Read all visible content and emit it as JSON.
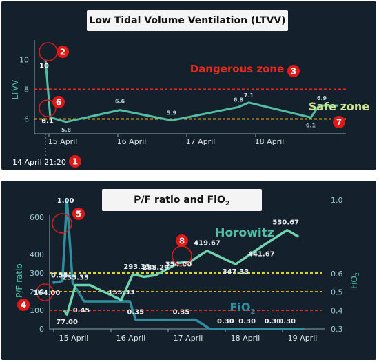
{
  "panels": [
    {
      "title": "Low Tidal Volume Ventilation (LTVV)",
      "ylabel": "LTVV",
      "start_label": "14 April 21:20",
      "zones": {
        "dangerous": "Dangerous zone",
        "safe": "Safe zone"
      },
      "markers": [
        "1",
        "2",
        "3",
        "6",
        "7"
      ]
    },
    {
      "title": "P/F ratio and FiO",
      "title_sub": "2",
      "ylabel_left": "P/F ratio",
      "ylabel_right": "FiO",
      "ylabel_right_sub": "2",
      "series_label_1": "Horowitz",
      "series_label_2": "FiO",
      "series_label_2_sub": "2",
      "markers": [
        "4",
        "5",
        "8"
      ]
    }
  ],
  "colors": {
    "background": "#14202b",
    "line": "#52bfa5",
    "danger": "#e8291c",
    "safe": "#e3a31c",
    "safe_text": "#cfe38f",
    "marker": "#e01818",
    "axis_text": "#9ec9d4"
  },
  "chart_data": [
    {
      "type": "line",
      "title": "Low Tidal Volume Ventilation (LTVV)",
      "ylabel": "LTVV",
      "xlabel": "",
      "x_tick_labels": [
        "15 April",
        "16 April",
        "17 April",
        "18 April"
      ],
      "yticks": [
        6,
        8,
        10
      ],
      "ylim": [
        5,
        11
      ],
      "xlim_days": [
        0,
        4.6
      ],
      "series": [
        {
          "x": [
            0,
            0.07,
            0.3,
            1.08,
            1.83,
            2.8,
            2.95,
            3.85,
            3.97,
            4.14,
            4.25
          ],
          "y": [
            10,
            6.1,
            5.8,
            6.6,
            5.9,
            6.8,
            7.1,
            6.1,
            6.9,
            6.9,
            6.9
          ],
          "labels": [
            "10",
            "6.1",
            "5.8",
            "6.6",
            "5.9",
            "6.8",
            "7.1",
            "6.1",
            "6.9",
            "",
            ""
          ]
        }
      ],
      "reference_lines": [
        {
          "y": 8,
          "style": "dashed",
          "color": "#e8291c"
        },
        {
          "y": 6,
          "style": "dashed",
          "color": "#e3a31c"
        }
      ],
      "grid": false
    },
    {
      "type": "line",
      "title": "P/F ratio and FiO2",
      "ylabel": "P/F ratio",
      "ylabel_right": "FiO2",
      "x_tick_labels": [
        "15 April",
        "16 April",
        "17 April",
        "18 April",
        "19 April"
      ],
      "yticks_left": [
        0,
        100,
        200,
        300,
        400,
        600
      ],
      "ylim_left": [
        0,
        650
      ],
      "yticks_right": [
        0.3,
        0.4,
        0.5,
        0.6,
        1.0
      ],
      "ylim_right": [
        0.3,
        1.0
      ],
      "series": [
        {
          "name": "Horowitz",
          "axis": "left",
          "x": [
            0,
            0.05,
            0.2,
            0.45,
            1.0,
            1.2,
            1.4,
            1.6,
            2.0,
            2.2,
            2.5,
            3.0,
            3.45,
            3.9,
            4.1
          ],
          "y": [
            100,
            77.0,
            235.33,
            235.33,
            155.33,
            293.33,
            280,
            288.29,
            354.0,
            360,
            419.67,
            347.33,
            441.67,
            530.67,
            495
          ],
          "labels": [
            "",
            "77.00",
            "235.33",
            "",
            "155.33",
            "293.33",
            "",
            "288.29",
            "354.00",
            "",
            "419.67",
            "347.33",
            "441.67",
            "530.67",
            ""
          ]
        },
        {
          "name": "FiO2",
          "axis": "right",
          "x": [
            -0.2,
            -0.03,
            0.05,
            0.15,
            0.35,
            0.9,
            1.15,
            1.25,
            2.0,
            2.3,
            2.55,
            2.8,
            3.2,
            3.45,
            3.65,
            3.9,
            4.2
          ],
          "y": [
            0.55,
            0.56,
            1.0,
            0.55,
            0.45,
            0.45,
            0.45,
            0.35,
            0.35,
            0.35,
            0.3,
            0.3,
            0.3,
            0.3,
            0.3,
            0.3,
            0.3
          ],
          "labels": [
            "0.55",
            "",
            "1.00",
            "",
            "0.45",
            "",
            "",
            "0.35",
            "0.35",
            "",
            "",
            "0.30",
            "0.30",
            "",
            "0.30",
            "0.30",
            ""
          ]
        }
      ],
      "reference_lines": [
        {
          "y": 300,
          "style": "dashed",
          "color": "#d9d03a"
        },
        {
          "y": 200,
          "style": "dashed",
          "color": "#e3a31c"
        },
        {
          "y": 100,
          "style": "dashed",
          "color": "#e8291c"
        }
      ],
      "grid": false
    }
  ]
}
